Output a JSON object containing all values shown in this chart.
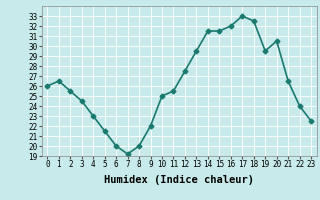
{
  "x": [
    0,
    1,
    2,
    3,
    4,
    5,
    6,
    7,
    8,
    9,
    10,
    11,
    12,
    13,
    14,
    15,
    16,
    17,
    18,
    19,
    20,
    21,
    22,
    23
  ],
  "y": [
    26,
    26.5,
    25.5,
    24.5,
    23,
    21.5,
    20,
    19.2,
    20,
    22,
    25,
    25.5,
    27.5,
    29.5,
    31.5,
    31.5,
    32,
    33,
    32.5,
    29.5,
    30.5,
    26.5,
    24,
    22.5
  ],
  "line_color": "#1a7a6e",
  "marker": "D",
  "marker_size": 2.5,
  "bg_color": "#c8eaea",
  "grid_color": "#ffffff",
  "xlabel": "Humidex (Indice chaleur)",
  "xlim": [
    -0.5,
    23.5
  ],
  "ylim": [
    19,
    34
  ],
  "yticks": [
    19,
    20,
    21,
    22,
    23,
    24,
    25,
    26,
    27,
    28,
    29,
    30,
    31,
    32,
    33
  ],
  "xticks": [
    0,
    1,
    2,
    3,
    4,
    5,
    6,
    7,
    8,
    9,
    10,
    11,
    12,
    13,
    14,
    15,
    16,
    17,
    18,
    19,
    20,
    21,
    22,
    23
  ],
  "tick_fontsize": 5.5,
  "xlabel_fontsize": 7.5,
  "linewidth": 1.2
}
